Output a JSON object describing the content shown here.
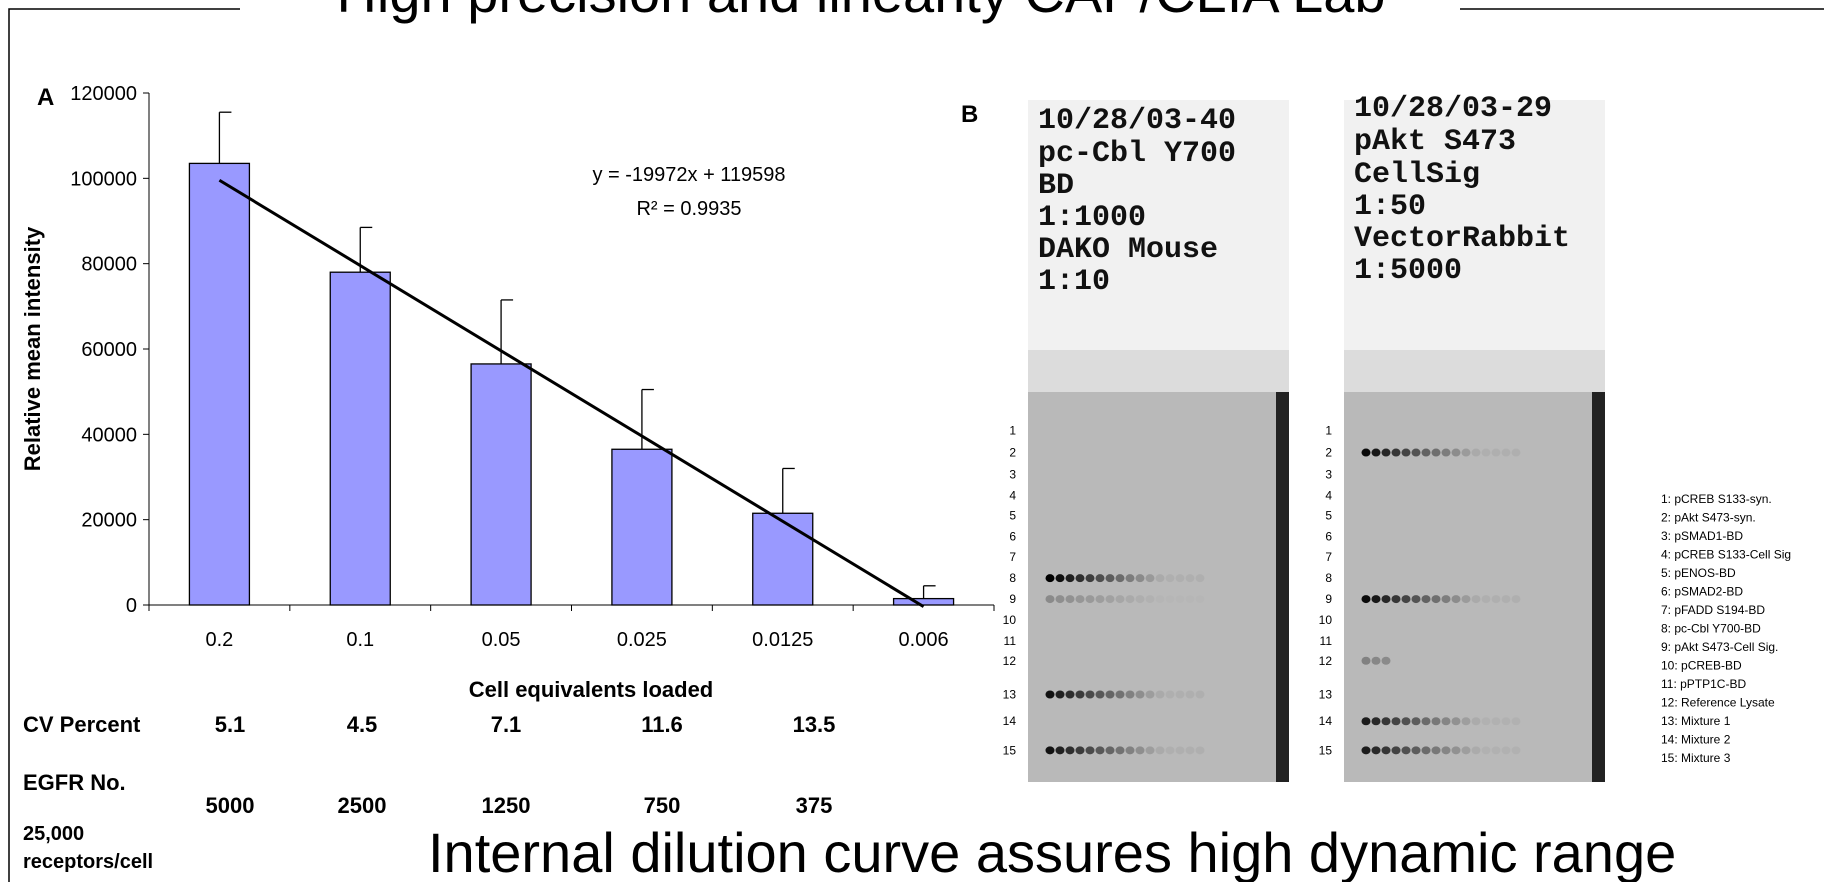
{
  "title": "High precision and linearity CAP/CLIA Lab",
  "caption": "Internal dilution curve assures high dynamic range",
  "chart_data": {
    "type": "bar",
    "panel": "A",
    "y_label": "Relative mean intensity",
    "x_label": "Cell equivalents loaded",
    "categories": [
      "0.2",
      "0.1",
      "0.05",
      "0.025",
      "0.0125",
      "0.006"
    ],
    "values": [
      103500,
      78000,
      56500,
      36500,
      21500,
      1500
    ],
    "errors": [
      12000,
      10500,
      15000,
      14000,
      10500,
      3000
    ],
    "color": "#9999ff",
    "ylim": [
      0,
      120000
    ],
    "yticks": [
      0,
      20000,
      40000,
      60000,
      80000,
      100000,
      120000
    ],
    "trendline": true,
    "equation": "y = -19972x + 119598",
    "r_squared": "R² = 0.9935"
  },
  "table": {
    "rows": [
      {
        "label": "CV Percent",
        "values": [
          "5.1",
          "4.5",
          "7.1",
          "11.6",
          "13.5"
        ]
      },
      {
        "label": "EGFR No.",
        "values": [
          "5000",
          "2500",
          "1250",
          "750",
          "375"
        ]
      }
    ],
    "note": [
      "25,000",
      "receptors/cell"
    ]
  },
  "panel_b": "B",
  "blots": [
    {
      "lines": [
        "10/28/03-40",
        "pc-Cbl Y700",
        "BD",
        "1:1000",
        "DAKO Mouse",
        "1:10"
      ]
    },
    {
      "lines": [
        "10/28/03-29",
        "pAkt S473",
        "CellSig",
        "1:50",
        "VectorRabbit",
        "1:5000"
      ]
    }
  ],
  "row_labels": [
    "1",
    "2",
    "3",
    "4",
    "5",
    "6",
    "7",
    "8",
    "9",
    "10",
    "11",
    "12",
    "13",
    "14",
    "15"
  ],
  "legend": [
    "1: pCREB S133-syn.",
    "2: pAkt S473-syn.",
    "3: pSMAD1-BD",
    "4: pCREB S133-Cell Sig",
    "5: pENOS-BD",
    "6: pSMAD2-BD",
    "7: pFADD S194-BD",
    "8: pc-Cbl Y700-BD",
    "9: pAkt S473-Cell Sig.",
    "10: pCREB-BD",
    "11: pPTP1C-BD",
    "12: Reference Lysate",
    "13: Mixture 1",
    "14: Mixture 2",
    "15: Mixture 3"
  ]
}
